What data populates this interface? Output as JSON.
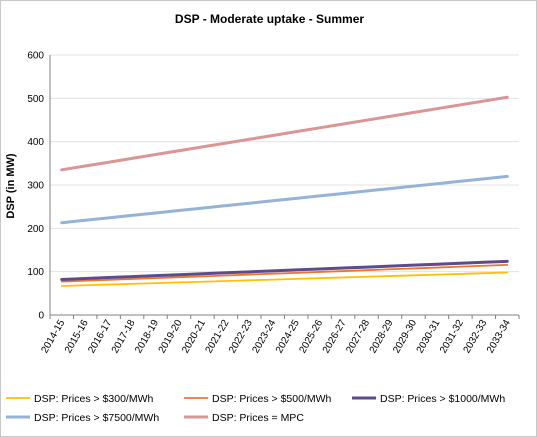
{
  "chart_data": {
    "type": "line",
    "title": "DSP -  Moderate uptake - Summer",
    "xlabel": "",
    "ylabel": "DSP (in MW)",
    "ylim": [
      0,
      600
    ],
    "yticks": [
      0,
      100,
      200,
      300,
      400,
      500,
      600
    ],
    "grid": true,
    "legend_position": "bottom",
    "categories": [
      "2014-15",
      "2015-16",
      "2016-17",
      "2017-18",
      "2018-19",
      "2019-20",
      "2020-21",
      "2021-22",
      "2022-23",
      "2023-24",
      "2024-25",
      "2025-26",
      "2026-27",
      "2027-28",
      "2028-29",
      "2029-30",
      "2030-31",
      "2031-32",
      "2032-33",
      "2033-34"
    ],
    "series": [
      {
        "name": "DSP: Prices > $300/MWh",
        "color": "#ffc000",
        "width": 1.8,
        "values": [
          67,
          68.6,
          70.3,
          71.9,
          73.6,
          75.2,
          76.8,
          78.5,
          80.1,
          81.7,
          83.4,
          85,
          86.7,
          88.3,
          89.9,
          91.6,
          93.2,
          94.8,
          96.5,
          98
        ]
      },
      {
        "name": "DSP: Prices > $500/MWh",
        "color": "#e8792b",
        "width": 1.8,
        "values": [
          77,
          79,
          81.1,
          83.1,
          85.1,
          87.2,
          89.2,
          91.2,
          93.3,
          95.3,
          97.3,
          99.4,
          101.4,
          103.4,
          105.5,
          107.5,
          109.5,
          111.6,
          113.6,
          115.6
        ]
      },
      {
        "name": "DSP: Prices > $1000/MWh",
        "color": "#5f4b8b",
        "width": 3,
        "values": [
          82,
          84.2,
          86.4,
          88.6,
          90.8,
          93,
          95.2,
          97.4,
          99.6,
          101.8,
          104,
          106.2,
          108.4,
          110.6,
          112.8,
          115,
          117.2,
          119.4,
          121.6,
          123.8
        ]
      },
      {
        "name": "DSP: Prices > $7500/MWh",
        "color": "#95b3d7",
        "width": 3,
        "values": [
          213,
          218.6,
          224.2,
          229.9,
          235.5,
          241.1,
          246.7,
          252.4,
          258,
          263.6,
          269.2,
          274.8,
          280.5,
          286.1,
          291.7,
          297.3,
          302.9,
          308.6,
          314.2,
          319.8
        ]
      },
      {
        "name": "DSP: Prices = MPC",
        "color": "#d99694",
        "width": 3,
        "values": [
          335,
          343.8,
          352.6,
          361.4,
          370.3,
          379.1,
          387.9,
          396.7,
          405.5,
          414.3,
          423.2,
          432,
          440.8,
          449.6,
          458.4,
          467.3,
          476.1,
          484.9,
          493.7,
          502.5
        ]
      }
    ]
  }
}
